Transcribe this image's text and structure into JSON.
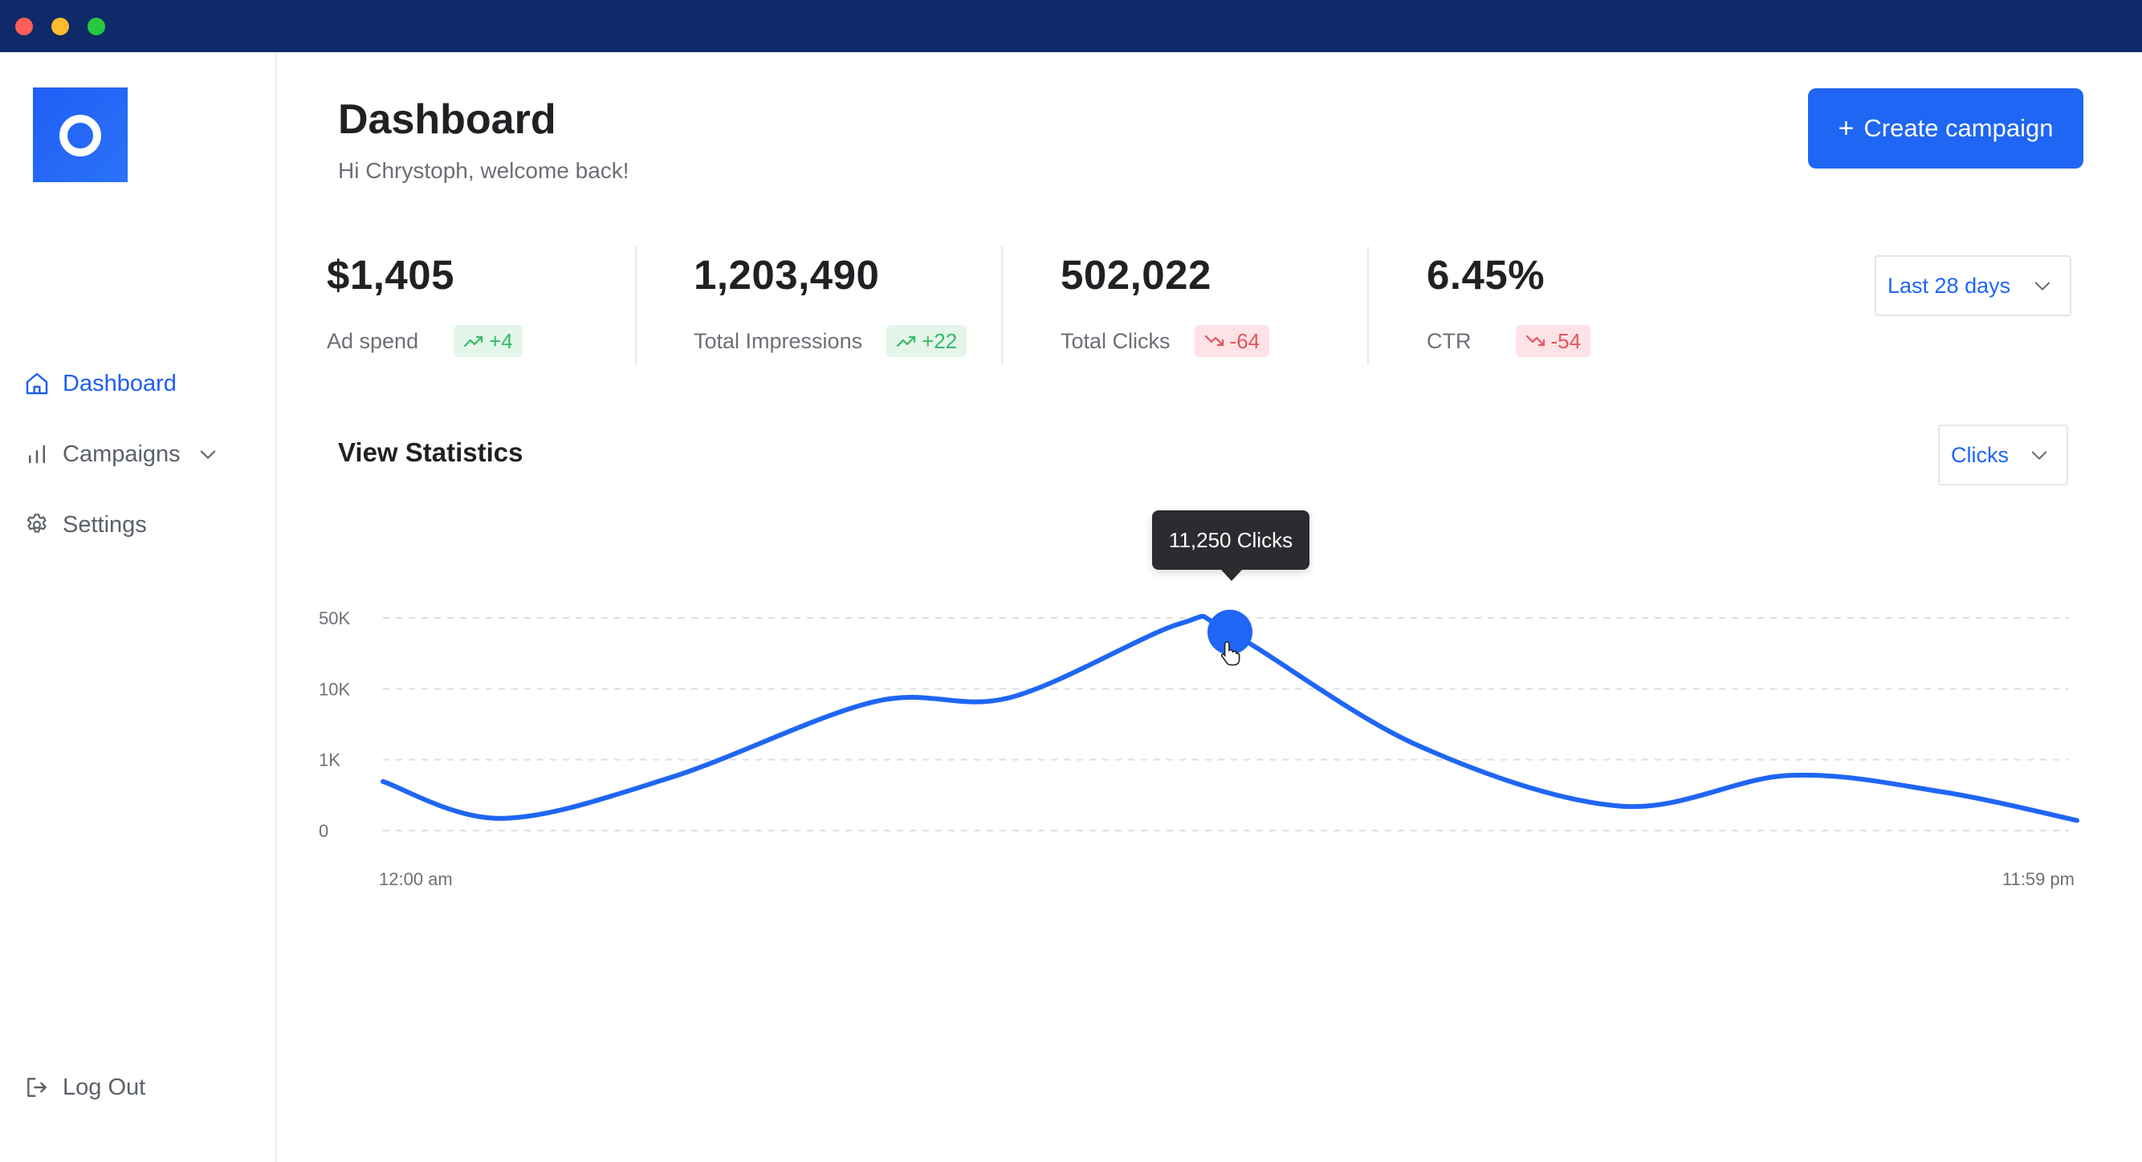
{
  "sidebar": {
    "items": [
      {
        "label": "Dashboard",
        "icon": "home-icon",
        "active": true
      },
      {
        "label": "Campaigns",
        "icon": "bar-chart-icon",
        "active": false
      },
      {
        "label": "Settings",
        "icon": "gear-icon",
        "active": false
      }
    ],
    "logout_label": "Log Out"
  },
  "header": {
    "title": "Dashboard",
    "subtitle": "Hi Chrystoph, welcome back!",
    "create_label": "Create campaign"
  },
  "stats": [
    {
      "value": "$1,405",
      "label": "Ad spend",
      "delta": "+4",
      "trend": "up"
    },
    {
      "value": "1,203,490",
      "label": "Total Impressions",
      "delta": "+22",
      "trend": "up"
    },
    {
      "value": "502,022",
      "label": "Total Clicks",
      "delta": "-64",
      "trend": "down"
    },
    {
      "value": "6.45%",
      "label": "CTR",
      "delta": "-54",
      "trend": "down"
    }
  ],
  "filters": {
    "range": "Last 28 days",
    "metric": "Clicks"
  },
  "section": {
    "title": "View Statistics"
  },
  "tooltip": "11,250 Clicks",
  "colors": {
    "accent": "#1f66f4",
    "up": "#35b96a",
    "down": "#e5525f",
    "titlebar": "#0f2a68"
  },
  "chart_data": {
    "type": "line",
    "y_ticks": [
      "50K",
      "10K",
      "1K",
      "0"
    ],
    "x_tick_labels": [
      "12:00 am",
      "11:59 pm"
    ],
    "series": [
      {
        "values": [
          {
            "t": 0.0,
            "level": 0.22
          },
          {
            "t": 0.07,
            "level": 0.04
          },
          {
            "t": 0.17,
            "level": 0.24
          },
          {
            "t": 0.29,
            "level": 0.61
          },
          {
            "t": 0.37,
            "level": 0.63
          },
          {
            "t": 0.47,
            "level": 0.99
          },
          {
            "t": 0.5,
            "level": 0.95
          },
          {
            "t": 0.61,
            "level": 0.4
          },
          {
            "t": 0.73,
            "level": 0.1
          },
          {
            "t": 0.83,
            "level": 0.25
          },
          {
            "t": 0.92,
            "level": 0.17
          },
          {
            "t": 1.0,
            "level": 0.03
          }
        ]
      }
    ],
    "highlight": {
      "t": 0.5,
      "level": 0.95
    },
    "grid": true,
    "grid_style": "dashed"
  }
}
